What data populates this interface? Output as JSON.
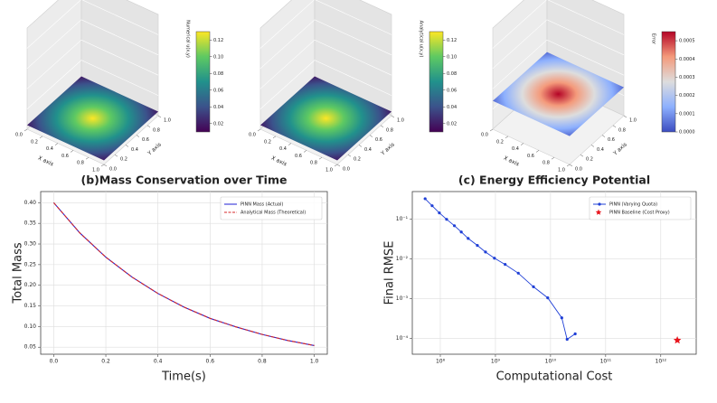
{
  "chart_data": [
    {
      "type": "surface3d",
      "xlabel": "X axis",
      "ylabel": "Y axis",
      "zlabel": "Numerical u(x,y)",
      "xlim": [
        0,
        1
      ],
      "ylim": [
        0,
        1
      ],
      "xticks": [
        {
          "value": 0,
          "label": "0.0"
        },
        0.2,
        0.4,
        0.6,
        0.8,
        {
          "value": 1,
          "label": "1.0"
        }
      ],
      "yticks": [
        {
          "value": 0,
          "label": "0.0"
        },
        0.2,
        0.4,
        0.6,
        0.8,
        {
          "value": 1,
          "label": "1.0"
        }
      ],
      "clim": [
        0.01,
        0.13
      ],
      "cticks": [
        0.02,
        0.04,
        0.06,
        0.08,
        {
          "value": 0.1,
          "label": "0.10"
        },
        0.12
      ],
      "colors": [
        "#440154",
        "#3b528b",
        "#21918c",
        "#5ec962",
        "#fde725"
      ]
    },
    {
      "type": "surface3d",
      "xlabel": "X axis",
      "ylabel": "Y axis",
      "zlabel": "Analytical u(x,y)",
      "xlim": [
        0,
        1
      ],
      "ylim": [
        0,
        1
      ],
      "xticks": [
        {
          "value": 0,
          "label": "0.0"
        },
        0.2,
        0.4,
        0.6,
        0.8,
        {
          "value": 1,
          "label": "1.0"
        }
      ],
      "yticks": [
        {
          "value": 0,
          "label": "0.0"
        },
        0.2,
        0.4,
        0.6,
        0.8,
        {
          "value": 1,
          "label": "1.0"
        }
      ],
      "clim": [
        0.01,
        0.13
      ],
      "cticks": [
        0.02,
        0.04,
        0.06,
        0.08,
        {
          "value": 0.1,
          "label": "0.10"
        },
        0.12
      ],
      "colors": [
        "#440154",
        "#3b528b",
        "#21918c",
        "#5ec962",
        "#fde725"
      ]
    },
    {
      "type": "surface3d",
      "xlabel": "X axis",
      "ylabel": "Y axis",
      "zlabel": "Error",
      "xlim": [
        0,
        1
      ],
      "ylim": [
        0,
        1
      ],
      "xticks": [
        {
          "value": 0,
          "label": "0.0"
        },
        0.2,
        0.4,
        0.6,
        0.8,
        {
          "value": 1,
          "label": "1.0"
        }
      ],
      "yticks": [
        {
          "value": 0,
          "label": "0.0"
        },
        0.2,
        0.4,
        0.6,
        0.8,
        {
          "value": 1,
          "label": "1.0"
        }
      ],
      "clim": [
        0,
        0.00055
      ],
      "cticks": [
        {
          "value": 0,
          "label": "0.0000"
        },
        0.0001,
        0.0002,
        0.0003,
        0.0004,
        0.0005
      ],
      "colors": [
        "#3b4cc0",
        "#8db0fe",
        "#dddddd",
        "#f49a7b",
        "#b40426"
      ]
    },
    {
      "type": "line",
      "title": "(b)Mass Conservation over Time",
      "xlabel": "Time(s)",
      "ylabel": "Total Mass",
      "xlim": [
        -0.05,
        1.05
      ],
      "ylim": [
        0.033,
        0.427
      ],
      "xticks": [
        {
          "value": 0,
          "label": "0.0"
        },
        0.2,
        0.4,
        0.6,
        0.8,
        {
          "value": 1,
          "label": "1.0"
        }
      ],
      "yticks": [
        0.05,
        {
          "value": 0.1,
          "label": "0.10"
        },
        0.15,
        {
          "value": 0.2,
          "label": "0.20"
        },
        0.25,
        {
          "value": 0.3,
          "label": "0.30"
        },
        0.35,
        {
          "value": 0.4,
          "label": "0.40"
        }
      ],
      "grid": true,
      "legend": "upper right",
      "series": [
        {
          "name": "PINN Mass (Actual)",
          "color": "#1f1fd6",
          "dash": false,
          "x": [
            0,
            0.1,
            0.2,
            0.3,
            0.4,
            0.5,
            0.6,
            0.7,
            0.8,
            0.9,
            1.0
          ],
          "values": [
            0.4,
            0.327,
            0.268,
            0.22,
            0.18,
            0.147,
            0.12,
            0.099,
            0.081,
            0.066,
            0.054
          ]
        },
        {
          "name": "Analytical Mass (Theoretical)",
          "color": "#d62728",
          "dash": true,
          "x": [
            0,
            0.1,
            0.2,
            0.3,
            0.4,
            0.5,
            0.6,
            0.7,
            0.8,
            0.9,
            1.0
          ],
          "values": [
            0.4,
            0.327,
            0.268,
            0.22,
            0.18,
            0.147,
            0.12,
            0.099,
            0.081,
            0.066,
            0.054
          ]
        }
      ]
    },
    {
      "type": "line",
      "title": "(c) Energy Efficiency Potential",
      "xlabel": "Computational Cost",
      "ylabel": "Final RMSE",
      "xscale": "log",
      "yscale": "log",
      "xlim": [
        31000000,
        4400000000000
      ],
      "ylim": [
        4e-05,
        0.5
      ],
      "xticks": [
        {
          "value": 100000000,
          "label": "10⁸"
        },
        {
          "value": 1000000000,
          "label": "10⁹"
        },
        {
          "value": 10000000000,
          "label": "10¹⁰"
        },
        {
          "value": 100000000000,
          "label": "10¹¹"
        },
        {
          "value": 1000000000000,
          "label": "10¹²"
        }
      ],
      "yticks": [
        {
          "value": 0.0001,
          "label": "10⁻⁴"
        },
        {
          "value": 0.001,
          "label": "10⁻³"
        },
        {
          "value": 0.01,
          "label": "10⁻²"
        },
        {
          "value": 0.1,
          "label": "10⁻¹"
        }
      ],
      "grid": true,
      "legend": "upper right",
      "series": [
        {
          "name": "PINN (Varying Quota)",
          "color": "#1f3fd6",
          "marker": "o",
          "x": [
            53000000,
            71000000,
            96000000,
            130000000,
            180000000,
            240000000,
            320000000,
            470000000,
            660000000,
            960000000,
            1500000000,
            2600000000,
            4900000000,
            8900000000,
            16000000000,
            20000000000,
            28000000000
          ],
          "values": [
            0.33,
            0.22,
            0.145,
            0.1,
            0.069,
            0.048,
            0.033,
            0.022,
            0.015,
            0.0105,
            0.0073,
            0.0044,
            0.002,
            0.00105,
            0.00033,
            9.5e-05,
            0.00013
          ]
        },
        {
          "name": "PINN Baseline (Cost Proxy)",
          "color": "#e8141c",
          "marker": "*",
          "x": [
            2000000000000
          ],
          "values": [
            9e-05
          ]
        }
      ]
    }
  ]
}
